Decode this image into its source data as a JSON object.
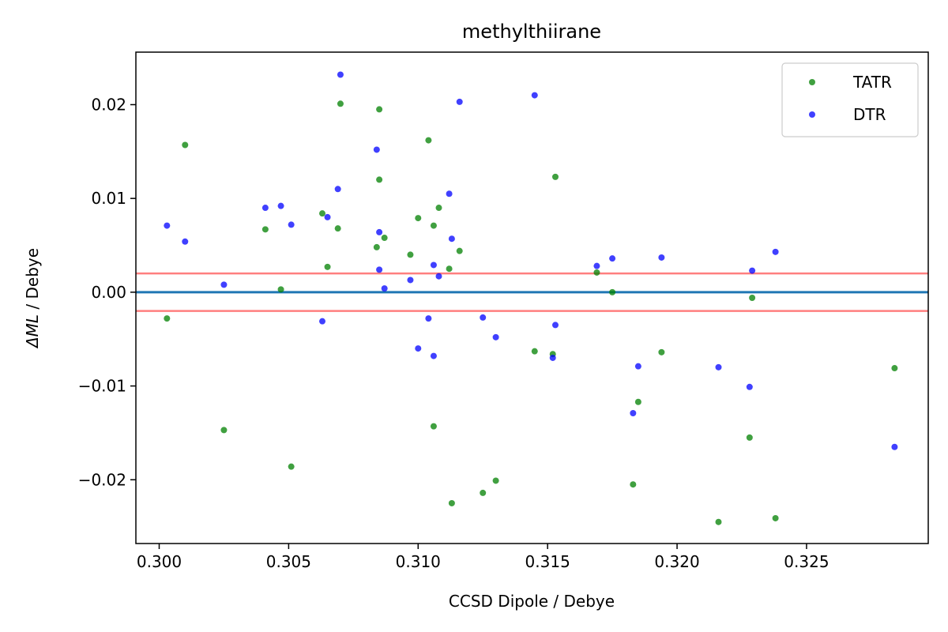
{
  "chart_data": {
    "type": "scatter",
    "title": "methylthiirane",
    "xlabel": "CCSD Dipole / Debye",
    "ylabel_prefix": "ΔML",
    "ylabel_suffix": " / Debye",
    "xlim": [
      0.2991,
      0.3297
    ],
    "ylim": [
      -0.0268,
      0.0256
    ],
    "xticks": [
      0.3,
      0.305,
      0.31,
      0.315,
      0.32,
      0.325
    ],
    "xtick_labels": [
      "0.300",
      "0.305",
      "0.310",
      "0.315",
      "0.320",
      "0.325"
    ],
    "yticks": [
      -0.02,
      -0.01,
      0.0,
      0.01,
      0.02
    ],
    "ytick_labels": [
      "−0.02",
      "−0.01",
      "0.00",
      "0.01",
      "0.02"
    ],
    "legend_position": "top-right",
    "hlines": [
      {
        "y": 0.0,
        "color": "#1f77b4"
      },
      {
        "y": 0.002,
        "color": "#ff7f7f"
      },
      {
        "y": -0.002,
        "color": "#ff7f7f"
      }
    ],
    "series": [
      {
        "name": "TATR",
        "color": "#008000",
        "points": [
          [
            0.3003,
            -0.0028
          ],
          [
            0.301,
            0.0157
          ],
          [
            0.3025,
            -0.0147
          ],
          [
            0.3041,
            0.0067
          ],
          [
            0.3047,
            0.0003
          ],
          [
            0.3051,
            -0.0186
          ],
          [
            0.3063,
            0.0084
          ],
          [
            0.3065,
            0.0027
          ],
          [
            0.3069,
            0.0068
          ],
          [
            0.307,
            0.0201
          ],
          [
            0.3084,
            0.0048
          ],
          [
            0.3085,
            0.0195
          ],
          [
            0.3085,
            0.012
          ],
          [
            0.3087,
            0.0058
          ],
          [
            0.3097,
            0.004
          ],
          [
            0.31,
            0.0079
          ],
          [
            0.3104,
            0.0162
          ],
          [
            0.3106,
            0.0071
          ],
          [
            0.3106,
            -0.0143
          ],
          [
            0.3108,
            0.009
          ],
          [
            0.3112,
            0.0025
          ],
          [
            0.3113,
            -0.0225
          ],
          [
            0.3116,
            0.0044
          ],
          [
            0.3125,
            -0.0214
          ],
          [
            0.313,
            -0.0201
          ],
          [
            0.3145,
            -0.0063
          ],
          [
            0.3152,
            -0.0066
          ],
          [
            0.3153,
            0.0123
          ],
          [
            0.3169,
            0.0021
          ],
          [
            0.3175,
            0.0
          ],
          [
            0.3183,
            -0.0205
          ],
          [
            0.3185,
            -0.0117
          ],
          [
            0.3194,
            -0.0064
          ],
          [
            0.3216,
            -0.0245
          ],
          [
            0.3228,
            -0.0155
          ],
          [
            0.3229,
            -0.0006
          ],
          [
            0.3238,
            -0.0241
          ],
          [
            0.3284,
            -0.0081
          ]
        ]
      },
      {
        "name": "DTR",
        "color": "#0000ff",
        "points": [
          [
            0.3003,
            0.0071
          ],
          [
            0.301,
            0.0054
          ],
          [
            0.3025,
            0.0008
          ],
          [
            0.3041,
            0.009
          ],
          [
            0.3047,
            0.0092
          ],
          [
            0.3051,
            0.0072
          ],
          [
            0.3063,
            -0.0031
          ],
          [
            0.3065,
            0.008
          ],
          [
            0.3069,
            0.011
          ],
          [
            0.307,
            0.0232
          ],
          [
            0.3084,
            0.0152
          ],
          [
            0.3085,
            0.0064
          ],
          [
            0.3085,
            0.0024
          ],
          [
            0.3087,
            0.0004
          ],
          [
            0.3097,
            0.0013
          ],
          [
            0.31,
            -0.006
          ],
          [
            0.3104,
            -0.0028
          ],
          [
            0.3106,
            0.0029
          ],
          [
            0.3106,
            -0.0068
          ],
          [
            0.3108,
            0.0017
          ],
          [
            0.3112,
            0.0105
          ],
          [
            0.3113,
            0.0057
          ],
          [
            0.3116,
            0.0203
          ],
          [
            0.3125,
            -0.0027
          ],
          [
            0.313,
            -0.0048
          ],
          [
            0.3145,
            0.021
          ],
          [
            0.3152,
            -0.007
          ],
          [
            0.3153,
            -0.0035
          ],
          [
            0.3169,
            0.0028
          ],
          [
            0.3175,
            0.0036
          ],
          [
            0.3183,
            -0.0129
          ],
          [
            0.3185,
            -0.0079
          ],
          [
            0.3194,
            0.0037
          ],
          [
            0.3216,
            -0.008
          ],
          [
            0.3228,
            -0.0101
          ],
          [
            0.3229,
            0.0023
          ],
          [
            0.3238,
            0.0043
          ],
          [
            0.3284,
            -0.0165
          ]
        ]
      }
    ]
  }
}
